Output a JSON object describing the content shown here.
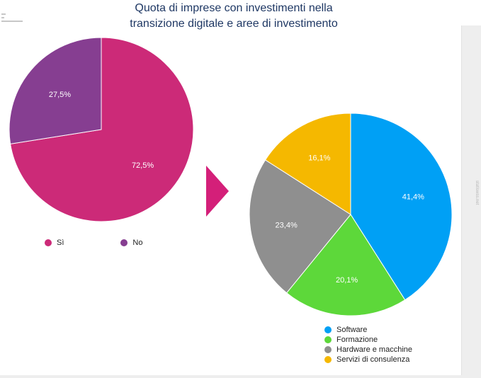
{
  "title_line1": "Quota di imprese con investimenti nella",
  "title_line2": "transizione digitale e aree di investimento",
  "side_note": "statiswss.net",
  "chart_data": [
    {
      "type": "pie",
      "categories": [
        "Sì",
        "No"
      ],
      "values": [
        72.5,
        27.5
      ],
      "labels": [
        "72,5%",
        "27,5%"
      ],
      "colors": [
        "#cc2a78",
        "#863e91"
      ],
      "legend_position": "bottom"
    },
    {
      "type": "pie",
      "categories": [
        "Software",
        "Formazione",
        "Hardware e macchine",
        "Servizi di consulenza"
      ],
      "values": [
        41.4,
        20.1,
        23.4,
        16.1
      ],
      "labels": [
        "41,4%",
        "20,1%",
        "23,4%",
        "16,1%"
      ],
      "colors": [
        "#00a0f5",
        "#5dd83a",
        "#8f8f8f",
        "#f5b800"
      ],
      "legend_position": "bottom"
    }
  ],
  "arrow_color": "#d41f79"
}
